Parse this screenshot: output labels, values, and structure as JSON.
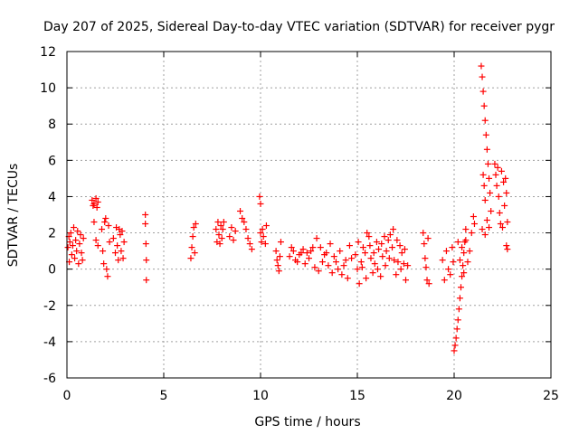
{
  "chart_data": {
    "type": "scatter",
    "title": "Day 207 of 2025, Sidereal Day-to-day VTEC variation (SDTVAR) for receiver pygr",
    "xlabel": "GPS time / hours",
    "ylabel": "SDTVAR / TECUs",
    "xlim": [
      0,
      25
    ],
    "ylim": [
      -6,
      12
    ],
    "xticks": [
      0,
      5,
      10,
      15,
      20,
      25
    ],
    "yticks": [
      -6,
      -4,
      -2,
      0,
      2,
      4,
      6,
      8,
      10,
      12
    ],
    "grid": true,
    "marker": "plus",
    "series_color": "#ff0000",
    "series": [
      {
        "name": "SDTVAR",
        "points": [
          [
            0.05,
            1.2
          ],
          [
            0.1,
            1.8
          ],
          [
            0.12,
            0.4
          ],
          [
            0.15,
            1.5
          ],
          [
            0.2,
            2.0
          ],
          [
            0.25,
            0.8
          ],
          [
            0.3,
            1.3
          ],
          [
            0.35,
            2.3
          ],
          [
            0.4,
            0.6
          ],
          [
            0.45,
            1.6
          ],
          [
            0.5,
            1.0
          ],
          [
            0.55,
            2.1
          ],
          [
            0.6,
            0.3
          ],
          [
            0.65,
            1.4
          ],
          [
            0.7,
            1.9
          ],
          [
            0.75,
            0.9
          ],
          [
            0.8,
            0.5
          ],
          [
            0.85,
            1.7
          ],
          [
            1.3,
            3.8
          ],
          [
            1.35,
            3.5
          ],
          [
            1.4,
            3.6
          ],
          [
            1.5,
            3.9
          ],
          [
            1.55,
            3.4
          ],
          [
            1.6,
            3.7
          ],
          [
            1.4,
            2.6
          ],
          [
            1.5,
            1.6
          ],
          [
            1.6,
            1.3
          ],
          [
            1.8,
            2.2
          ],
          [
            1.85,
            1.0
          ],
          [
            1.9,
            0.3
          ],
          [
            1.95,
            2.6
          ],
          [
            2.0,
            2.8
          ],
          [
            2.05,
            0.0
          ],
          [
            2.1,
            -0.4
          ],
          [
            2.15,
            2.4
          ],
          [
            2.2,
            1.5
          ],
          [
            2.4,
            1.7
          ],
          [
            2.5,
            0.9
          ],
          [
            2.55,
            2.3
          ],
          [
            2.6,
            1.3
          ],
          [
            2.65,
            0.5
          ],
          [
            2.7,
            2.2
          ],
          [
            2.75,
            1.9
          ],
          [
            2.8,
            1.0
          ],
          [
            2.85,
            2.1
          ],
          [
            2.9,
            0.6
          ],
          [
            2.95,
            1.5
          ],
          [
            4.05,
            3.0
          ],
          [
            4.05,
            2.5
          ],
          [
            4.08,
            1.4
          ],
          [
            4.1,
            0.5
          ],
          [
            4.1,
            -0.6
          ],
          [
            6.4,
            0.6
          ],
          [
            6.45,
            1.2
          ],
          [
            6.5,
            1.8
          ],
          [
            6.55,
            2.3
          ],
          [
            6.6,
            0.9
          ],
          [
            6.65,
            2.5
          ],
          [
            7.7,
            2.2
          ],
          [
            7.75,
            1.5
          ],
          [
            7.8,
            2.6
          ],
          [
            7.85,
            1.9
          ],
          [
            7.9,
            1.4
          ],
          [
            7.95,
            2.4
          ],
          [
            8.0,
            1.7
          ],
          [
            8.05,
            2.2
          ],
          [
            8.1,
            2.6
          ],
          [
            8.4,
            1.8
          ],
          [
            8.5,
            2.3
          ],
          [
            8.6,
            1.6
          ],
          [
            8.7,
            2.1
          ],
          [
            8.95,
            3.2
          ],
          [
            9.05,
            2.8
          ],
          [
            9.15,
            2.6
          ],
          [
            9.25,
            2.2
          ],
          [
            9.35,
            1.7
          ],
          [
            9.45,
            1.4
          ],
          [
            9.55,
            1.1
          ],
          [
            9.95,
            4.0
          ],
          [
            10.0,
            3.6
          ],
          [
            10.0,
            2.0
          ],
          [
            10.05,
            1.5
          ],
          [
            10.1,
            2.2
          ],
          [
            10.15,
            1.8
          ],
          [
            10.25,
            1.4
          ],
          [
            10.3,
            2.4
          ],
          [
            10.8,
            1.0
          ],
          [
            10.85,
            0.5
          ],
          [
            10.9,
            0.2
          ],
          [
            10.95,
            -0.1
          ],
          [
            11.0,
            0.7
          ],
          [
            11.05,
            1.5
          ],
          [
            11.5,
            0.7
          ],
          [
            11.7,
            1.0
          ],
          [
            11.9,
            0.4
          ],
          [
            12.1,
            0.9
          ],
          [
            12.3,
            0.3
          ],
          [
            12.5,
            0.6
          ],
          [
            12.7,
            1.2
          ],
          [
            12.9,
            1.7
          ],
          [
            13.1,
            1.2
          ],
          [
            13.3,
            0.8
          ],
          [
            13.5,
            0.2
          ],
          [
            13.7,
            -0.2
          ],
          [
            13.9,
            0.4
          ],
          [
            14.1,
            1.0
          ],
          [
            14.3,
            0.2
          ],
          [
            14.5,
            -0.5
          ],
          [
            14.7,
            0.6
          ],
          [
            11.6,
            1.2
          ],
          [
            11.8,
            0.5
          ],
          [
            12.0,
            0.8
          ],
          [
            12.2,
            1.1
          ],
          [
            12.4,
            0.9
          ],
          [
            12.6,
            1.0
          ],
          [
            12.8,
            0.1
          ],
          [
            13.0,
            -0.1
          ],
          [
            13.2,
            0.4
          ],
          [
            13.4,
            0.9
          ],
          [
            13.6,
            1.4
          ],
          [
            13.8,
            0.7
          ],
          [
            14.0,
            0.0
          ],
          [
            14.2,
            -0.3
          ],
          [
            14.4,
            0.5
          ],
          [
            14.6,
            1.3
          ],
          [
            14.9,
            0.8
          ],
          [
            15.0,
            0.0
          ],
          [
            15.1,
            -0.8
          ],
          [
            15.2,
            0.4
          ],
          [
            15.3,
            1.2
          ],
          [
            15.4,
            0.9
          ],
          [
            15.5,
            2.0
          ],
          [
            15.6,
            1.8
          ],
          [
            15.7,
            0.6
          ],
          [
            15.8,
            -0.2
          ],
          [
            15.9,
            0.3
          ],
          [
            16.0,
            1.5
          ],
          [
            16.1,
            1.1
          ],
          [
            16.2,
            -0.4
          ],
          [
            16.3,
            0.7
          ],
          [
            16.4,
            1.8
          ],
          [
            16.5,
            1.0
          ],
          [
            16.6,
            1.6
          ],
          [
            16.7,
            1.9
          ],
          [
            16.8,
            1.2
          ],
          [
            16.9,
            0.5
          ],
          [
            17.0,
            -0.3
          ],
          [
            17.1,
            0.4
          ],
          [
            17.2,
            1.3
          ],
          [
            17.3,
            0.9
          ],
          [
            17.4,
            0.3
          ],
          [
            17.5,
            -0.6
          ],
          [
            17.6,
            0.2
          ],
          [
            15.05,
            1.5
          ],
          [
            15.25,
            0.1
          ],
          [
            15.45,
            -0.5
          ],
          [
            15.65,
            1.3
          ],
          [
            15.85,
            0.9
          ],
          [
            16.05,
            0.0
          ],
          [
            16.25,
            1.4
          ],
          [
            16.45,
            0.2
          ],
          [
            16.65,
            0.6
          ],
          [
            16.85,
            2.2
          ],
          [
            17.05,
            1.6
          ],
          [
            17.25,
            0.0
          ],
          [
            17.45,
            1.1
          ],
          [
            18.4,
            2.0
          ],
          [
            18.45,
            1.4
          ],
          [
            18.5,
            0.6
          ],
          [
            18.55,
            0.1
          ],
          [
            18.6,
            -0.6
          ],
          [
            18.65,
            1.7
          ],
          [
            18.7,
            -0.8
          ],
          [
            19.4,
            0.5
          ],
          [
            19.5,
            -0.6
          ],
          [
            19.6,
            1.0
          ],
          [
            19.7,
            0.0
          ],
          [
            19.8,
            -0.3
          ],
          [
            19.9,
            1.2
          ],
          [
            19.95,
            0.4
          ],
          [
            20.0,
            -4.5
          ],
          [
            20.05,
            -4.2
          ],
          [
            20.1,
            -3.8
          ],
          [
            20.15,
            -3.3
          ],
          [
            20.2,
            -2.8
          ],
          [
            20.25,
            -2.2
          ],
          [
            20.3,
            -1.6
          ],
          [
            20.35,
            -1.0
          ],
          [
            20.4,
            -0.4
          ],
          [
            20.45,
            0.2
          ],
          [
            20.5,
            0.9
          ],
          [
            20.55,
            1.5
          ],
          [
            20.6,
            2.2
          ],
          [
            20.2,
            1.5
          ],
          [
            20.3,
            0.5
          ],
          [
            20.4,
            1.2
          ],
          [
            20.5,
            -0.2
          ],
          [
            20.6,
            1.6
          ],
          [
            20.7,
            0.4
          ],
          [
            20.8,
            1.0
          ],
          [
            20.9,
            2.0
          ],
          [
            21.0,
            2.9
          ],
          [
            21.05,
            2.5
          ],
          [
            21.4,
            11.2
          ],
          [
            21.45,
            10.6
          ],
          [
            21.5,
            9.8
          ],
          [
            21.55,
            9.0
          ],
          [
            21.6,
            8.2
          ],
          [
            21.65,
            7.4
          ],
          [
            21.7,
            6.6
          ],
          [
            21.75,
            5.8
          ],
          [
            21.8,
            5.0
          ],
          [
            21.85,
            4.2
          ],
          [
            21.5,
            5.2
          ],
          [
            21.55,
            4.6
          ],
          [
            21.6,
            3.8
          ],
          [
            21.45,
            2.2
          ],
          [
            21.6,
            1.9
          ],
          [
            21.7,
            2.7
          ],
          [
            21.8,
            2.3
          ],
          [
            21.9,
            3.2
          ],
          [
            22.1,
            5.8
          ],
          [
            22.15,
            5.2
          ],
          [
            22.2,
            4.6
          ],
          [
            22.25,
            5.6
          ],
          [
            22.3,
            4.0
          ],
          [
            22.35,
            3.1
          ],
          [
            22.4,
            2.5
          ],
          [
            22.45,
            5.4
          ],
          [
            22.5,
            2.3
          ],
          [
            22.55,
            4.8
          ],
          [
            22.6,
            3.5
          ],
          [
            22.65,
            5.0
          ],
          [
            22.7,
            4.2
          ],
          [
            22.75,
            2.6
          ],
          [
            22.7,
            1.3
          ],
          [
            22.75,
            1.1
          ]
        ]
      }
    ]
  }
}
